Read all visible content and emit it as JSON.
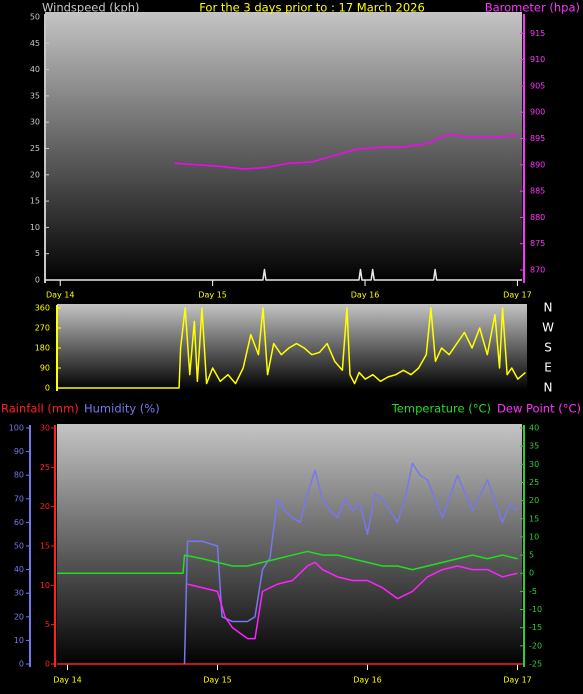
{
  "chart_data": [
    {
      "type": "line",
      "title": "For the 3 days prior to : 17 March 2026",
      "xlim": [
        13.9,
        17.03
      ],
      "xticks": [
        {
          "value": 14,
          "label": "Day 14"
        },
        {
          "value": 15,
          "label": "Day 15"
        },
        {
          "value": 16,
          "label": "Day 16"
        },
        {
          "value": 17,
          "label": "Day 17"
        }
      ],
      "xtick_color": "#ffff00",
      "ylim": [
        0,
        50
      ],
      "yticks": [
        0,
        5,
        10,
        15,
        20,
        25,
        30,
        35,
        40,
        45,
        50
      ],
      "y2lim": [
        868.1,
        918.1
      ],
      "y2ticks": [
        870,
        875,
        880,
        885,
        890,
        895,
        900,
        905,
        910,
        915
      ],
      "axis_colors": {
        "y": "#c8c8c8",
        "y2": "#ff33ff"
      },
      "series": [
        {
          "name": "Windspeed (kph)",
          "color": "#e8e8e8",
          "x": [
            13.9,
            15.33,
            15.34,
            15.35,
            15.96,
            15.97,
            15.98,
            16.04,
            16.05,
            16.06,
            16.45,
            16.46,
            16.47,
            17.03
          ],
          "values": [
            0,
            0,
            2,
            0,
            0,
            2,
            0,
            0,
            2,
            0,
            0,
            2,
            0,
            0
          ]
        },
        {
          "name": "Barometer (hpa)",
          "color": "#ff00ff",
          "axis": "y2",
          "x": [
            14.75,
            14.9,
            15.05,
            15.2,
            15.35,
            15.5,
            15.65,
            15.8,
            15.95,
            16.1,
            16.25,
            16.4,
            16.55,
            16.7,
            16.85,
            17.0
          ],
          "values": [
            890.3,
            890,
            889.7,
            889.2,
            889.5,
            890.3,
            890.5,
            891.8,
            893,
            893.3,
            893.4,
            894,
            895.8,
            895.2,
            895.3,
            895.6
          ]
        }
      ]
    },
    {
      "type": "line",
      "xlim": [
        13.98,
        17.06
      ],
      "ylim": [
        0,
        360
      ],
      "yticks": [
        0,
        90,
        180,
        270,
        360
      ],
      "axis_colors": {
        "y": "#ffff00"
      },
      "direction_labels": [
        "N",
        "W",
        "S",
        "E",
        "N"
      ],
      "series": [
        {
          "color": "#ffff00",
          "x": [
            13.98,
            14.78,
            14.79,
            14.82,
            14.85,
            14.88,
            14.9,
            14.93,
            14.96,
            15.0,
            15.05,
            15.1,
            15.15,
            15.2,
            15.25,
            15.3,
            15.33,
            15.36,
            15.4,
            15.45,
            15.5,
            15.55,
            15.6,
            15.65,
            15.7,
            15.75,
            15.8,
            15.85,
            15.88,
            15.9,
            15.93,
            15.96,
            16.0,
            16.05,
            16.1,
            16.15,
            16.2,
            16.25,
            16.3,
            16.35,
            16.4,
            16.43,
            16.46,
            16.5,
            16.55,
            16.6,
            16.65,
            16.7,
            16.75,
            16.8,
            16.85,
            16.88,
            16.9,
            16.93,
            16.96,
            17.0,
            17.05
          ],
          "values": [
            0,
            0,
            180,
            360,
            60,
            300,
            30,
            360,
            20,
            90,
            30,
            60,
            20,
            90,
            240,
            150,
            360,
            60,
            200,
            150,
            180,
            200,
            180,
            150,
            160,
            200,
            120,
            80,
            360,
            60,
            20,
            70,
            40,
            60,
            30,
            50,
            60,
            80,
            60,
            90,
            150,
            360,
            120,
            180,
            150,
            200,
            250,
            180,
            270,
            150,
            330,
            90,
            360,
            60,
            90,
            40,
            70
          ]
        }
      ]
    },
    {
      "type": "line",
      "xlim": [
        13.93,
        17.03
      ],
      "xticks": [
        {
          "value": 14,
          "label": "Day 14"
        },
        {
          "value": 15,
          "label": "Day 15"
        },
        {
          "value": 16,
          "label": "Day 16"
        },
        {
          "value": 17,
          "label": "Day 17"
        }
      ],
      "xtick_color": "#ffff00",
      "ylim": [
        0,
        100
      ],
      "yticks": [
        0,
        10,
        20,
        30,
        40,
        50,
        60,
        70,
        80,
        90,
        100
      ],
      "y2lim": [
        0,
        30
      ],
      "y2ticks": [
        0,
        5,
        10,
        15,
        20,
        25,
        30
      ],
      "y3lim": [
        -25,
        40
      ],
      "y3ticks": [
        -25,
        -20,
        -15,
        -10,
        -5,
        0,
        5,
        10,
        15,
        20,
        25,
        30,
        35,
        40
      ],
      "axis_colors": {
        "y": "#7777ee",
        "y2": "#ff2020",
        "y3": "#33cc33"
      },
      "series": [
        {
          "name": "Rainfall (mm)",
          "color": "#ff2020",
          "axis": "y2",
          "x": [
            13.93,
            17.03
          ],
          "values": [
            0,
            0
          ]
        },
        {
          "name": "Humidity (%)",
          "color": "#7777ee",
          "x": [
            14.78,
            14.8,
            14.9,
            15.0,
            15.03,
            15.1,
            15.2,
            15.25,
            15.3,
            15.35,
            15.4,
            15.45,
            15.5,
            15.55,
            15.6,
            15.65,
            15.7,
            15.75,
            15.8,
            15.85,
            15.9,
            15.95,
            16.0,
            16.05,
            16.1,
            16.15,
            16.2,
            16.25,
            16.3,
            16.35,
            16.4,
            16.5,
            16.6,
            16.7,
            16.8,
            16.9,
            16.95,
            17.0
          ],
          "values": [
            0,
            52,
            52,
            50,
            20,
            18,
            18,
            20,
            40,
            45,
            70,
            65,
            62,
            60,
            72,
            82,
            70,
            65,
            62,
            70,
            65,
            68,
            55,
            72,
            70,
            65,
            60,
            70,
            85,
            80,
            78,
            62,
            80,
            65,
            78,
            60,
            68,
            65
          ]
        },
        {
          "name": "Temperature (°C)",
          "color": "#22dd22",
          "axis": "y3",
          "x": [
            13.93,
            14.77,
            14.78,
            14.9,
            15.0,
            15.1,
            15.2,
            15.3,
            15.4,
            15.5,
            15.6,
            15.7,
            15.8,
            15.9,
            16.0,
            16.1,
            16.2,
            16.3,
            16.4,
            16.5,
            16.6,
            16.7,
            16.8,
            16.9,
            17.0
          ],
          "values": [
            0,
            0,
            5,
            4,
            3,
            2,
            2,
            3,
            4,
            5,
            6,
            5,
            5,
            4,
            3,
            2,
            2,
            1,
            2,
            3,
            4,
            5,
            4,
            5,
            4
          ]
        },
        {
          "name": "Dew Point (°C)",
          "color": "#ff22ff",
          "axis": "y3",
          "x": [
            14.8,
            14.9,
            15.0,
            15.05,
            15.1,
            15.2,
            15.25,
            15.3,
            15.4,
            15.5,
            15.6,
            15.65,
            15.7,
            15.8,
            15.9,
            16.0,
            16.1,
            16.2,
            16.3,
            16.4,
            16.5,
            16.6,
            16.7,
            16.8,
            16.9,
            17.0
          ],
          "values": [
            -3,
            -4,
            -5,
            -12,
            -15,
            -18,
            -18,
            -5,
            -3,
            -2,
            2,
            3,
            1,
            -1,
            -2,
            -2,
            -4,
            -7,
            -5,
            -1,
            1,
            2,
            1,
            1,
            -1,
            0
          ]
        }
      ]
    }
  ]
}
